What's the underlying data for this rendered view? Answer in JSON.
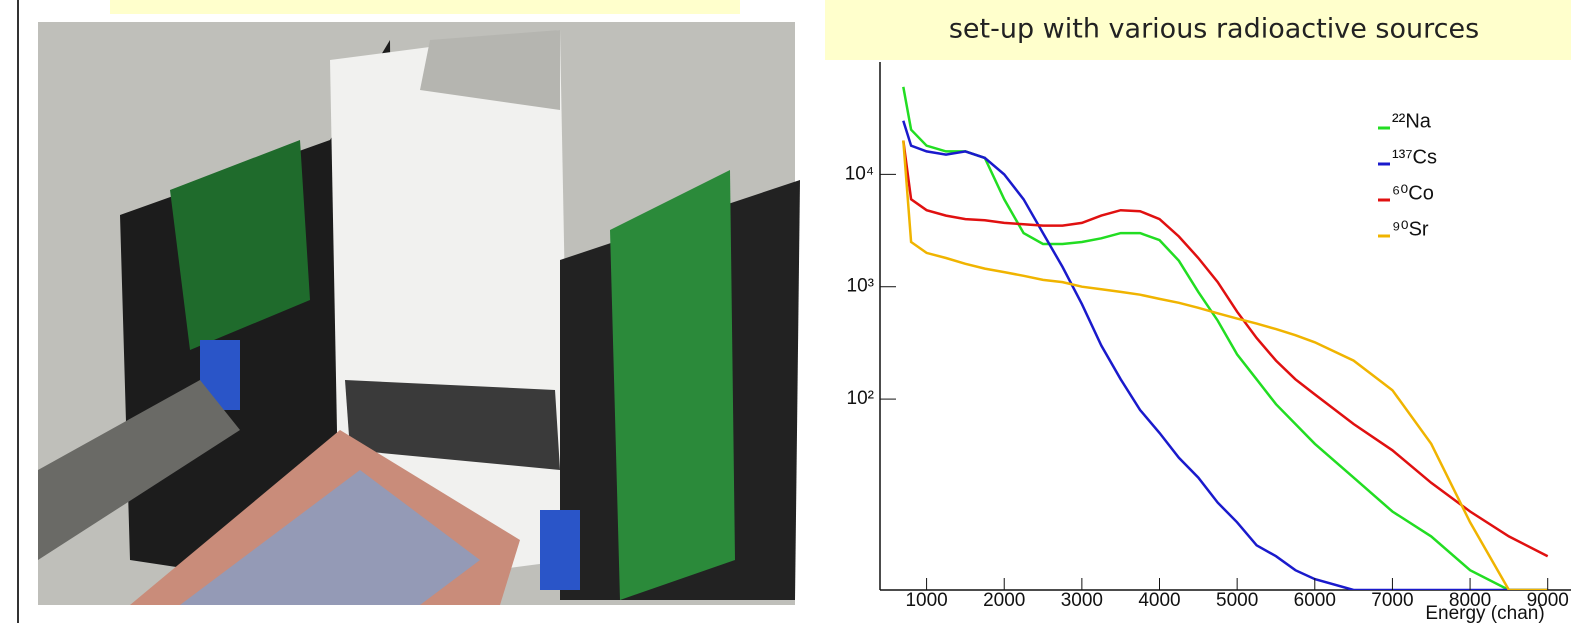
{
  "chart_data": {
    "type": "line",
    "title": "set-up with various radioactive sources",
    "x_label": "Energy (chan)",
    "log_y": true,
    "legend": "upper right",
    "xlim": [
      400,
      9300
    ],
    "ylim": [
      2,
      100000
    ],
    "xticks": [
      1000,
      2000,
      3000,
      4000,
      5000,
      6000,
      7000,
      8000,
      9000
    ],
    "yticks": [
      {
        "value": 100,
        "label": "10²"
      },
      {
        "value": 1000,
        "label": "10³"
      },
      {
        "value": 10000,
        "label": "10⁴"
      }
    ],
    "x": [
      700,
      800,
      1000,
      1250,
      1500,
      1750,
      2000,
      2250,
      2500,
      2750,
      3000,
      3250,
      3500,
      3750,
      4000,
      4250,
      4500,
      4750,
      5000,
      5250,
      5500,
      5750,
      6000,
      6500,
      7000,
      7500,
      8000,
      8500,
      9000
    ],
    "series": [
      {
        "name": "²²Na",
        "color": "#22dd22",
        "values": [
          60000,
          25000,
          18000,
          16000,
          16000,
          14000,
          6000,
          3000,
          2400,
          2400,
          2500,
          2700,
          3000,
          3000,
          2600,
          1700,
          900,
          500,
          250,
          150,
          90,
          60,
          40,
          20,
          10,
          6,
          3,
          2,
          2
        ]
      },
      {
        "name": "¹³⁷Cs",
        "color": "#1a1acc",
        "values": [
          30000,
          18000,
          16000,
          15000,
          16000,
          14000,
          10000,
          6000,
          3000,
          1500,
          700,
          300,
          150,
          80,
          50,
          30,
          20,
          12,
          8,
          5,
          4,
          3,
          2.5,
          2,
          2,
          2,
          2,
          2,
          2
        ]
      },
      {
        "name": "⁶⁰Co",
        "color": "#e01010",
        "values": [
          20000,
          6000,
          4800,
          4300,
          4000,
          3900,
          3700,
          3600,
          3500,
          3500,
          3700,
          4300,
          4800,
          4700,
          4000,
          2800,
          1800,
          1100,
          600,
          350,
          220,
          150,
          110,
          60,
          35,
          18,
          10,
          6,
          4
        ]
      },
      {
        "name": "⁹⁰Sr",
        "color": "#f0b400",
        "values": [
          20000,
          2500,
          2000,
          1800,
          1600,
          1450,
          1350,
          1250,
          1150,
          1100,
          1000,
          950,
          900,
          850,
          780,
          720,
          650,
          580,
          520,
          470,
          420,
          370,
          320,
          220,
          120,
          40,
          8,
          2,
          2
        ]
      }
    ]
  }
}
